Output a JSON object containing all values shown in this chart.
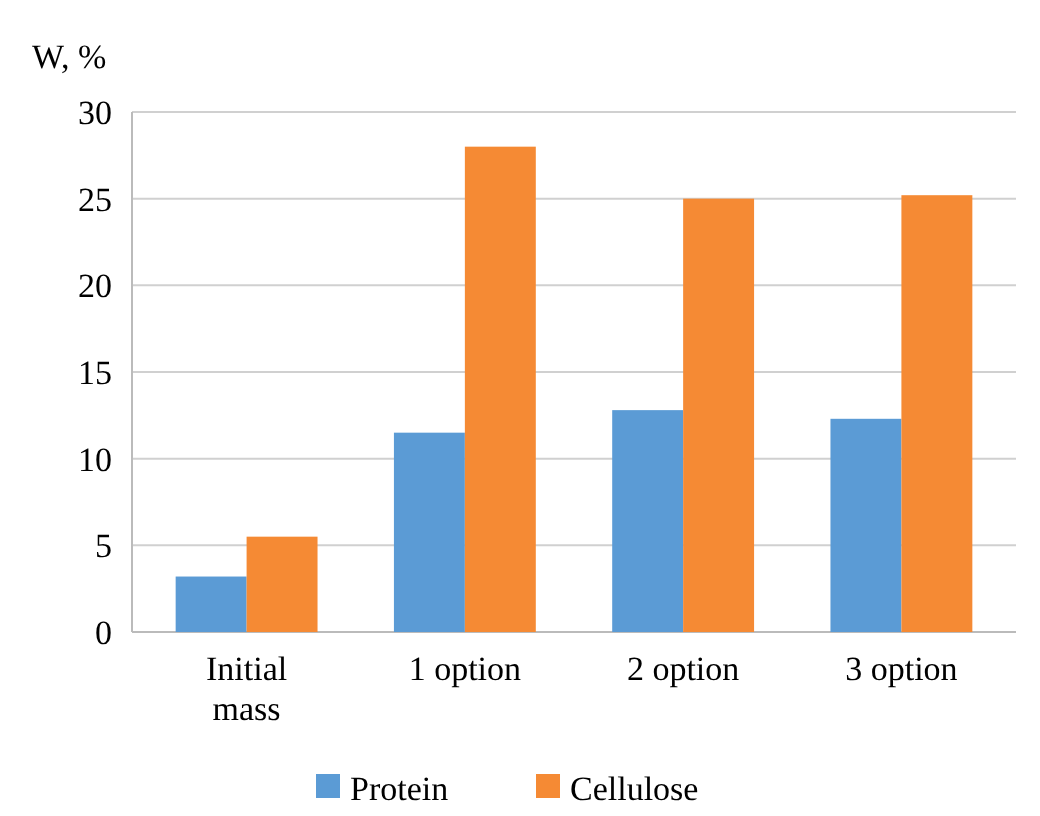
{
  "chart_data": {
    "type": "bar",
    "ylabel": "W, %",
    "categories": [
      "Initial mass",
      "1 option",
      "2 option",
      "3 option"
    ],
    "series": [
      {
        "name": "Protein",
        "color": "#5b9bd5",
        "values": [
          3.2,
          11.5,
          12.8,
          12.3
        ]
      },
      {
        "name": "Cellulose",
        "color": "#f58a34",
        "values": [
          5.5,
          28,
          25,
          25.2
        ]
      }
    ],
    "ylim": [
      0,
      30
    ],
    "yticks": [
      0,
      5,
      10,
      15,
      20,
      25,
      30
    ],
    "grid": "y",
    "legend": "bottom"
  }
}
